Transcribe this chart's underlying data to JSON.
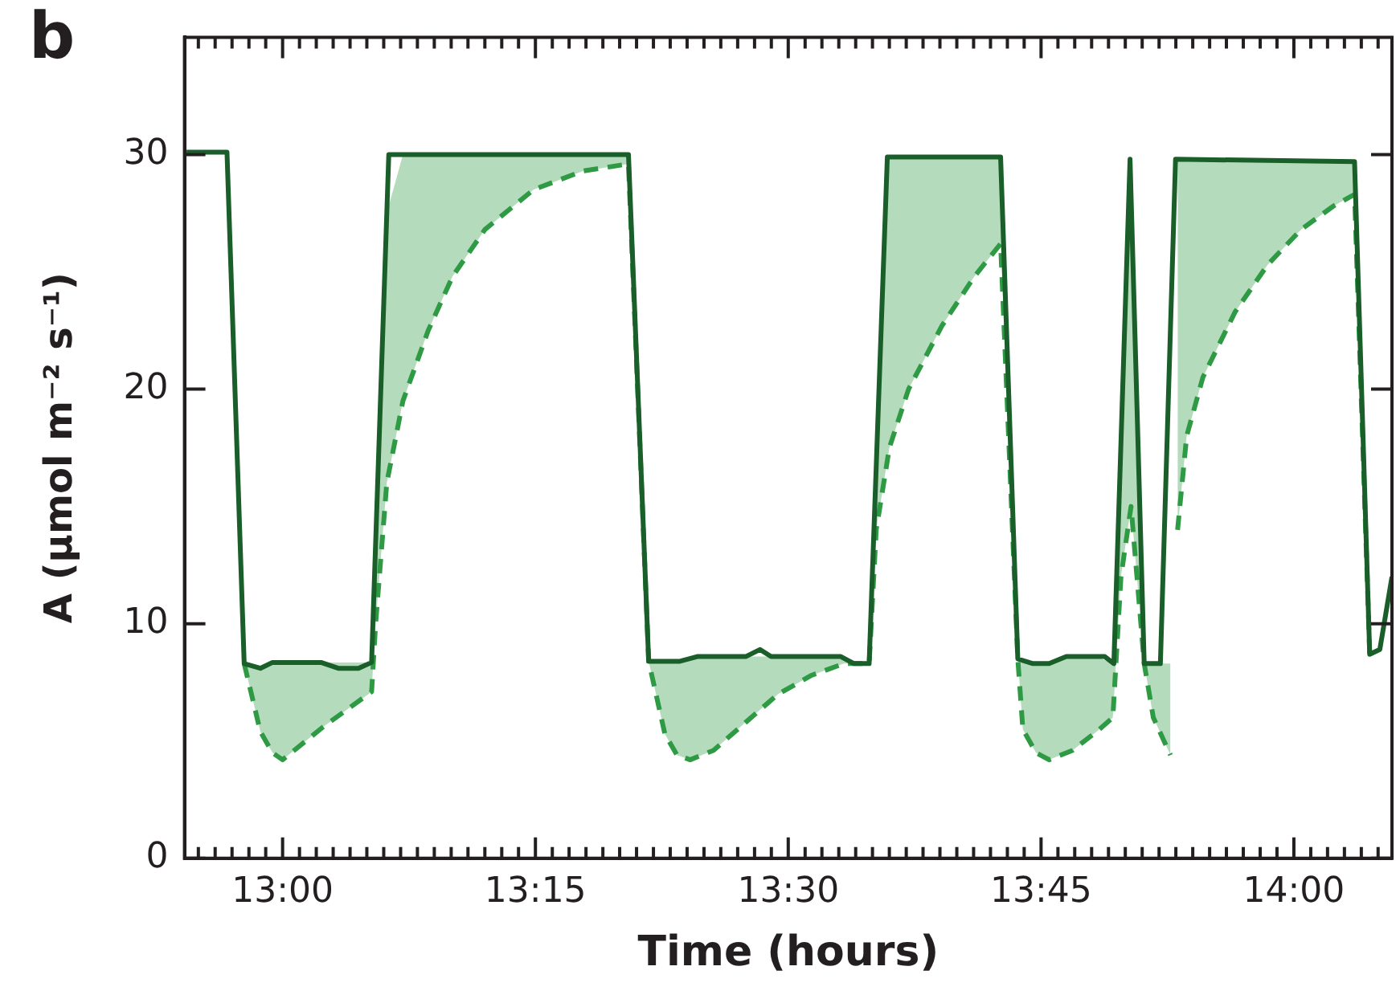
{
  "chart_data": {
    "type": "line",
    "title": "b",
    "xlabel": "Time (hours)",
    "ylabel": "A (μmol m⁻² s⁻¹)",
    "xlim": [
      12.903,
      14.097
    ],
    "ylim": [
      0,
      35
    ],
    "yticks": [
      0,
      10,
      20,
      30
    ],
    "xticks": [
      {
        "value": 12.9167,
        "label": null
      },
      {
        "value": 12.9333,
        "label": null
      },
      {
        "value": 12.95,
        "label": null
      },
      {
        "value": 12.9667,
        "label": null
      },
      {
        "value": 12.9833,
        "label": null
      },
      {
        "value": 13,
        "label": "13:00"
      },
      {
        "value": 13.0167,
        "label": null
      },
      {
        "value": 13.0333,
        "label": null
      },
      {
        "value": 13.05,
        "label": null
      },
      {
        "value": 13.0667,
        "label": null
      },
      {
        "value": 13.0833,
        "label": null
      },
      {
        "value": 13.1,
        "label": null
      },
      {
        "value": 13.1167,
        "label": null
      },
      {
        "value": 13.1333,
        "label": null
      },
      {
        "value": 13.15,
        "label": null
      },
      {
        "value": 13.1667,
        "label": null
      },
      {
        "value": 13.1833,
        "label": null
      },
      {
        "value": 13.2,
        "label": null
      },
      {
        "value": 13.2167,
        "label": null
      },
      {
        "value": 13.2333,
        "label": null
      },
      {
        "value": 13.25,
        "label": "13:15"
      },
      {
        "value": 13.2667,
        "label": null
      },
      {
        "value": 13.2833,
        "label": null
      },
      {
        "value": 13.3,
        "label": null
      },
      {
        "value": 13.3167,
        "label": null
      },
      {
        "value": 13.3333,
        "label": null
      },
      {
        "value": 13.35,
        "label": null
      },
      {
        "value": 13.3667,
        "label": null
      },
      {
        "value": 13.3833,
        "label": null
      },
      {
        "value": 13.4,
        "label": null
      },
      {
        "value": 13.4167,
        "label": null
      },
      {
        "value": 13.4333,
        "label": null
      },
      {
        "value": 13.45,
        "label": null
      },
      {
        "value": 13.4667,
        "label": null
      },
      {
        "value": 13.4833,
        "label": null
      },
      {
        "value": 13.5,
        "label": "13:30"
      },
      {
        "value": 13.5167,
        "label": null
      },
      {
        "value": 13.5333,
        "label": null
      },
      {
        "value": 13.55,
        "label": null
      },
      {
        "value": 13.5667,
        "label": null
      },
      {
        "value": 13.5833,
        "label": null
      },
      {
        "value": 13.6,
        "label": null
      },
      {
        "value": 13.6167,
        "label": null
      },
      {
        "value": 13.6333,
        "label": null
      },
      {
        "value": 13.65,
        "label": null
      },
      {
        "value": 13.6667,
        "label": null
      },
      {
        "value": 13.6833,
        "label": null
      },
      {
        "value": 13.7,
        "label": null
      },
      {
        "value": 13.7167,
        "label": null
      },
      {
        "value": 13.7333,
        "label": null
      },
      {
        "value": 13.75,
        "label": "13:45"
      },
      {
        "value": 13.7667,
        "label": null
      },
      {
        "value": 13.7833,
        "label": null
      },
      {
        "value": 13.8,
        "label": null
      },
      {
        "value": 13.8167,
        "label": null
      },
      {
        "value": 13.8333,
        "label": null
      },
      {
        "value": 13.85,
        "label": null
      },
      {
        "value": 13.8667,
        "label": null
      },
      {
        "value": 13.8833,
        "label": null
      },
      {
        "value": 13.9,
        "label": null
      },
      {
        "value": 13.9167,
        "label": null
      },
      {
        "value": 13.9333,
        "label": null
      },
      {
        "value": 13.95,
        "label": null
      },
      {
        "value": 13.9667,
        "label": null
      },
      {
        "value": 13.9833,
        "label": null
      },
      {
        "value": 14,
        "label": "14:00"
      },
      {
        "value": 14.0167,
        "label": null
      },
      {
        "value": 14.0333,
        "label": null
      },
      {
        "value": 14.05,
        "label": null
      },
      {
        "value": 14.0667,
        "label": null
      },
      {
        "value": 14.0833,
        "label": null
      }
    ],
    "marker": "none",
    "legend": false,
    "series": [
      {
        "color": "#1a5e2a",
        "line_style": "solid",
        "x": [
          12.905,
          12.945,
          12.962,
          12.978,
          12.99,
          13.038,
          13.055,
          13.075,
          13.088,
          13.105,
          13.342,
          13.362,
          13.393,
          13.41,
          13.458,
          13.472,
          13.483,
          13.552,
          13.565,
          13.58,
          13.598,
          13.71,
          13.727,
          13.742,
          13.758,
          13.775,
          13.813,
          13.822,
          13.838,
          13.852,
          13.868,
          13.883,
          14.06,
          14.075,
          14.085,
          14.097
        ],
        "values": [
          30.1,
          30.1,
          8.3,
          8.1,
          8.35,
          8.35,
          8.1,
          8.1,
          8.35,
          30,
          30,
          8.4,
          8.4,
          8.6,
          8.6,
          8.9,
          8.6,
          8.6,
          8.3,
          8.3,
          29.9,
          29.9,
          8.5,
          8.3,
          8.3,
          8.6,
          8.6,
          8.3,
          29.8,
          8.3,
          8.3,
          29.8,
          29.7,
          8.7,
          8.9,
          12
        ]
      },
      {
        "color": "#2e9a44",
        "line_style": "dashed",
        "x": [
          12.962,
          12.978,
          12.99,
          13.0,
          13.04,
          13.088,
          13.092,
          13.103,
          13.119,
          13.144,
          13.168,
          13.2,
          13.248,
          13.297,
          13.342,
          13.362,
          13.378,
          13.39,
          13.403,
          13.426,
          13.458,
          13.49,
          13.523,
          13.555,
          13.58,
          13.587,
          13.6,
          13.619,
          13.652,
          13.684,
          13.71,
          13.727,
          13.732,
          13.745,
          13.758,
          13.781,
          13.805,
          13.821,
          13.829,
          13.839,
          13.852,
          13.861,
          13.878,
          13.88,
          13.885,
          13.894,
          13.91,
          13.942,
          13.974,
          14.007,
          14.039,
          14.06,
          14.075
        ],
        "values": [
          8.3,
          5.4,
          4.5,
          4.2,
          5.6,
          7.1,
          10,
          16,
          19.5,
          22.5,
          24.8,
          26.8,
          28.5,
          29.3,
          29.6,
          8.4,
          5.3,
          4.4,
          4.2,
          4.6,
          5.8,
          7.0,
          7.8,
          8.3,
          8.3,
          14,
          17.5,
          20,
          22.7,
          24.8,
          26.2,
          8.5,
          5.5,
          4.5,
          4.2,
          4.6,
          5.4,
          6.0,
          12,
          15,
          8.3,
          6,
          4.4,
          null,
          14,
          18,
          20.5,
          23.3,
          25.3,
          26.8,
          27.8,
          28.3,
          8.7
        ],
        "lower": [
          8.3,
          5.4,
          4.5,
          4.2,
          5.6,
          7.1,
          10,
          16,
          19.5,
          22.5,
          24.8,
          26.8,
          28.5,
          29.3,
          29.6,
          8.4,
          5.3,
          4.4,
          4.2,
          4.6,
          5.8,
          7.0,
          7.8,
          8.3,
          8.3,
          14,
          17.5,
          20,
          22.7,
          24.8,
          26.2,
          8.5,
          5.5,
          4.5,
          4.2,
          4.6,
          5.4,
          6.0,
          12,
          15,
          8.3,
          6,
          4.4,
          null,
          14,
          18,
          20.5,
          23.3,
          25.3,
          26.8,
          27.8,
          28.3,
          8.7
        ],
        "upper": [
          8.3,
          8.1,
          8.35,
          8.35,
          8.35,
          8.35,
          13.4,
          27.5,
          30,
          30,
          30,
          30,
          30,
          30,
          30,
          8.4,
          8.4,
          8.4,
          8.5,
          8.6,
          8.6,
          8.6,
          8.6,
          8.5,
          8.3,
          16.7,
          29.9,
          29.9,
          29.9,
          29.9,
          29.9,
          8.5,
          8.4,
          8.3,
          8.3,
          8.6,
          8.6,
          8.3,
          17.7,
          28.3,
          8.3,
          8.3,
          8.3,
          null,
          29.8,
          29.8,
          29.8,
          29.8,
          29.8,
          29.8,
          29.7,
          29.7,
          8.7
        ]
      }
    ]
  }
}
